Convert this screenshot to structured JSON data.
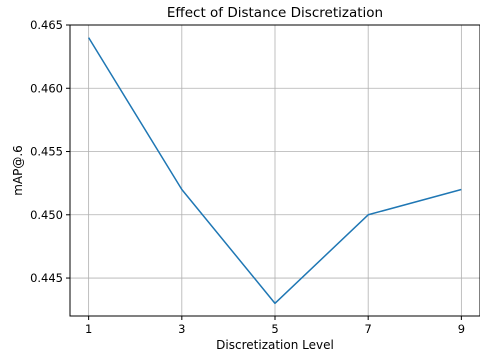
{
  "chart_data": {
    "type": "line",
    "title": "Effect of Distance Discretization",
    "xlabel": "Discretization Level",
    "ylabel": "mAP@.6",
    "x": [
      1,
      3,
      5,
      7,
      9
    ],
    "series": [
      {
        "values": [
          0.464,
          0.452,
          0.443,
          0.45,
          0.452
        ],
        "color": "#1f77b4"
      }
    ],
    "xlim": [
      0.6,
      9.4
    ],
    "ylim": [
      0.442,
      0.465
    ],
    "xticks": [
      "1",
      "3",
      "5",
      "7",
      "9"
    ],
    "yticks": [
      "0.445",
      "0.450",
      "0.455",
      "0.460",
      "0.465"
    ],
    "grid": true
  }
}
